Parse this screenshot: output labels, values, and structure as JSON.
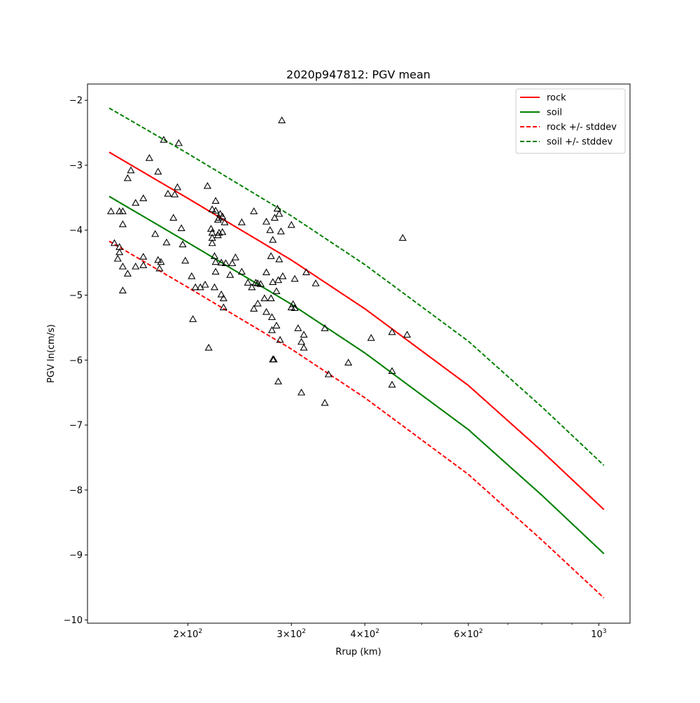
{
  "chart_data": {
    "type": "scatter",
    "title": "2020p947812: PGV mean",
    "xlabel": "Rrup (km)",
    "ylabel": "PGV ln(cm/s)",
    "xscale": "log",
    "xlim": [
      135,
      1130
    ],
    "ylim": [
      -10.05,
      -1.75
    ],
    "grid": false,
    "legend_position": "top-right",
    "x_ticks": [
      {
        "value": 200,
        "base": "2",
        "exp": "2"
      },
      {
        "value": 300,
        "base": "3",
        "exp": "2"
      },
      {
        "value": 400,
        "base": "4",
        "exp": "2"
      },
      {
        "value": 600,
        "base": "6",
        "exp": "2"
      },
      {
        "value": 1000,
        "base": "10",
        "exp": "3"
      }
    ],
    "x_minor_ticks": [
      500,
      700,
      800,
      900
    ],
    "y_ticks": [
      {
        "value": -2,
        "label": "−2"
      },
      {
        "value": -3,
        "label": "−3"
      },
      {
        "value": -4,
        "label": "−4"
      },
      {
        "value": -5,
        "label": "−5"
      },
      {
        "value": -6,
        "label": "−6"
      },
      {
        "value": -7,
        "label": "−7"
      },
      {
        "value": -8,
        "label": "−8"
      },
      {
        "value": -9,
        "label": "−9"
      },
      {
        "value": -10,
        "label": "−10"
      }
    ],
    "x": [
      147,
      200,
      300,
      400,
      600,
      800,
      1020
    ],
    "series": [
      {
        "name": "rock",
        "style": "solid",
        "color": "#ff0000",
        "width": 2,
        "values": [
          -2.8,
          -3.51,
          -4.46,
          -5.21,
          -6.39,
          -7.4,
          -8.3
        ]
      },
      {
        "name": "soil",
        "style": "solid",
        "color": "#008000",
        "width": 2,
        "values": [
          -3.48,
          -4.19,
          -5.14,
          -5.89,
          -7.07,
          -8.08,
          -8.98
        ]
      },
      {
        "name": "rock +/- stddev",
        "style": "dashed",
        "color": "#ff0000",
        "width": 2,
        "values": [
          -2.8,
          -3.51,
          -4.46,
          -5.21,
          -6.39,
          -7.4,
          -8.3
        ]
      },
      {
        "name": "rock +/- stddev",
        "style": "dashed",
        "color": "#ff0000",
        "width": 2,
        "legend": false,
        "values": [
          -4.17,
          -4.88,
          -5.83,
          -6.58,
          -7.76,
          -8.77,
          -9.66
        ]
      },
      {
        "name": "soil +/- stddev",
        "style": "dashed",
        "color": "#008000",
        "width": 2,
        "values": [
          -2.12,
          -2.82,
          -3.78,
          -4.53,
          -5.71,
          -6.72,
          -7.62
        ]
      },
      {
        "name": "soil +/- stddev",
        "style": "dashed",
        "color": "#008000",
        "width": 2,
        "legend": false,
        "values": [
          -3.48,
          -4.19,
          -5.14,
          -5.89,
          -7.07,
          -8.08,
          -8.98
        ]
      }
    ],
    "observations": {
      "marker": "triangle",
      "color": "#000000",
      "points": [
        [
          148,
          -3.71
        ],
        [
          150,
          -4.2
        ],
        [
          152,
          -4.44
        ],
        [
          153,
          -4.26
        ],
        [
          153,
          -3.71
        ],
        [
          153,
          -4.34
        ],
        [
          155,
          -3.71
        ],
        [
          155,
          -3.91
        ],
        [
          155,
          -4.56
        ],
        [
          155,
          -4.93
        ],
        [
          158,
          -3.2
        ],
        [
          158,
          -4.67
        ],
        [
          160,
          -3.08
        ],
        [
          163,
          -3.58
        ],
        [
          163,
          -4.56
        ],
        [
          168,
          -3.51
        ],
        [
          168,
          -4.41
        ],
        [
          168,
          -4.54
        ],
        [
          172,
          -2.89
        ],
        [
          176,
          -4.06
        ],
        [
          178,
          -3.1
        ],
        [
          178,
          -4.46
        ],
        [
          179,
          -4.59
        ],
        [
          180,
          -4.49
        ],
        [
          182,
          -2.61
        ],
        [
          184,
          -4.19
        ],
        [
          185,
          -3.44
        ],
        [
          189,
          -3.81
        ],
        [
          190,
          -3.45
        ],
        [
          192,
          -3.34
        ],
        [
          193,
          -2.66
        ],
        [
          195,
          -3.97
        ],
        [
          196,
          -4.22
        ],
        [
          198,
          -4.47
        ],
        [
          203,
          -4.71
        ],
        [
          204,
          -5.37
        ],
        [
          206,
          -4.88
        ],
        [
          210,
          -4.88
        ],
        [
          214,
          -4.84
        ],
        [
          216,
          -3.32
        ],
        [
          217,
          -5.81
        ],
        [
          219,
          -3.98
        ],
        [
          220,
          -4.04
        ],
        [
          220,
          -3.68
        ],
        [
          220,
          -4.12
        ],
        [
          220,
          -4.2
        ],
        [
          222,
          -4.88
        ],
        [
          222,
          -4.4
        ],
        [
          223,
          -4.49
        ],
        [
          223,
          -4.64
        ],
        [
          223,
          -3.55
        ],
        [
          223,
          -3.7
        ],
        [
          225,
          -3.84
        ],
        [
          225,
          -4.08
        ],
        [
          226,
          -4.04
        ],
        [
          226,
          -3.81
        ],
        [
          227,
          -3.75
        ],
        [
          228,
          -4.5
        ],
        [
          228,
          -4.99
        ],
        [
          229,
          -4.03
        ],
        [
          229,
          -3.79
        ],
        [
          230,
          -5.05
        ],
        [
          230,
          -5.19
        ],
        [
          231,
          -3.88
        ],
        [
          232,
          -4.51
        ],
        [
          236,
          -4.69
        ],
        [
          238,
          -4.51
        ],
        [
          241,
          -4.42
        ],
        [
          247,
          -4.64
        ],
        [
          247,
          -3.88
        ],
        [
          253,
          -4.81
        ],
        [
          257,
          -4.88
        ],
        [
          259,
          -3.71
        ],
        [
          259,
          -5.21
        ],
        [
          261,
          -4.81
        ],
        [
          263,
          -4.82
        ],
        [
          263,
          -5.13
        ],
        [
          266,
          -4.83
        ],
        [
          270,
          -5.05
        ],
        [
          272,
          -4.65
        ],
        [
          272,
          -3.87
        ],
        [
          272,
          -5.26
        ],
        [
          276,
          -4.0
        ],
        [
          277,
          -4.4
        ],
        [
          277,
          -5.05
        ],
        [
          278,
          -5.54
        ],
        [
          278,
          -5.34
        ],
        [
          279,
          -5.99
        ],
        [
          279,
          -4.8
        ],
        [
          279,
          -4.15
        ],
        [
          280,
          -5.99
        ],
        [
          281,
          -3.81
        ],
        [
          283,
          -4.94
        ],
        [
          283,
          -5.47
        ],
        [
          284,
          -3.67
        ],
        [
          285,
          -6.33
        ],
        [
          285,
          -4.77
        ],
        [
          286,
          -4.45
        ],
        [
          286,
          -3.75
        ],
        [
          287,
          -5.69
        ],
        [
          288,
          -4.02
        ],
        [
          289,
          -2.31
        ],
        [
          290,
          -4.71
        ],
        [
          300,
          -3.92
        ],
        [
          300,
          -5.19
        ],
        [
          302,
          -5.14
        ],
        [
          304,
          -5.2
        ],
        [
          304,
          -4.75
        ],
        [
          308,
          -5.51
        ],
        [
          312,
          -6.5
        ],
        [
          312,
          -5.72
        ],
        [
          315,
          -5.81
        ],
        [
          315,
          -5.61
        ],
        [
          318,
          -4.65
        ],
        [
          330,
          -4.82
        ],
        [
          342,
          -6.66
        ],
        [
          342,
          -5.51
        ],
        [
          347,
          -6.22
        ],
        [
          375,
          -6.04
        ],
        [
          410,
          -5.66
        ],
        [
          445,
          -6.17
        ],
        [
          445,
          -6.38
        ],
        [
          445,
          -5.57
        ],
        [
          464,
          -4.12
        ],
        [
          472,
          -5.61
        ]
      ]
    }
  }
}
